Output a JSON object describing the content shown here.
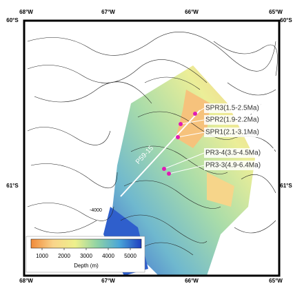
{
  "map": {
    "lon_labels": [
      "68°W",
      "67°W",
      "66°W",
      "65°W"
    ],
    "lat_labels": [
      "60°S",
      "61°S"
    ],
    "profile": "P59-15",
    "contour_label": "-4000",
    "samples": [
      "SPR3(1.5-2.5Ma)",
      "SPR2(1.9-2.2Ma)",
      "SPR1(2.1-3.1Ma)",
      "PR3-4(3.5-4.5Ma)",
      "PR3-3(4.9-6.4Ma)"
    ],
    "colorbar": {
      "lim": [
        500,
        5500
      ],
      "ticks": [
        1000,
        2000,
        3000,
        4000,
        5000
      ],
      "label": "Depth (m)"
    }
  }
}
